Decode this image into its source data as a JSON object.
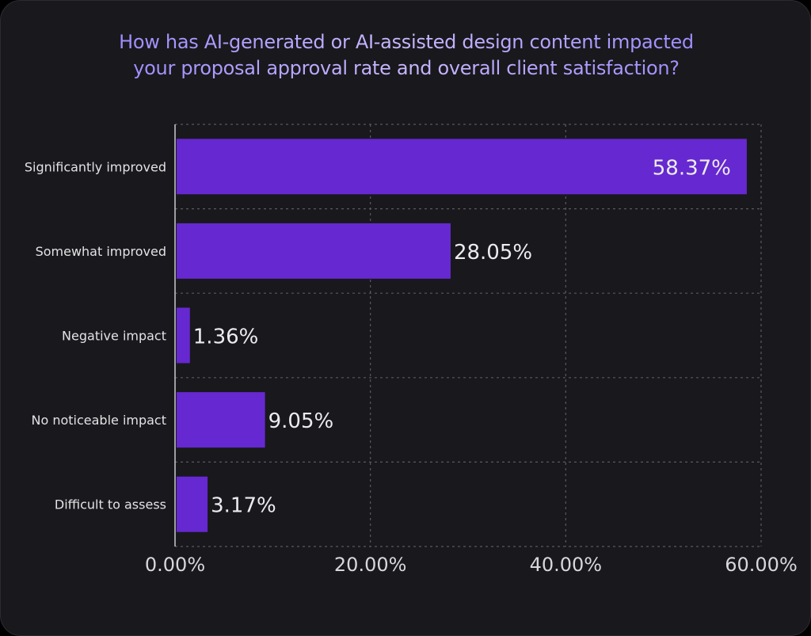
{
  "title": {
    "line1": "How has AI-generated or AI-assisted design content impacted",
    "line2": "your proposal approval rate and overall client satisfaction?"
  },
  "colors": {
    "bar": "#6628d0",
    "background": "#19181c",
    "title_accent": "#8e7bff"
  },
  "chart_data": {
    "type": "bar",
    "orientation": "horizontal",
    "title": "How has AI-generated or AI-assisted design content impacted your proposal approval rate and overall client satisfaction?",
    "categories": [
      "Significantly improved",
      "Somewhat improved",
      "Negative impact",
      "No noticeable impact",
      "Difficult to assess"
    ],
    "values": [
      58.37,
      28.05,
      1.36,
      9.05,
      3.17
    ],
    "value_labels": [
      "58.37%",
      "28.05%",
      "1.36%",
      "9.05%",
      "3.17%"
    ],
    "xlim": [
      0,
      60
    ],
    "x_ticks": [
      "0.00%",
      "20.00%",
      "40.00%",
      "60.00%"
    ],
    "grid": true,
    "legend": "none"
  }
}
